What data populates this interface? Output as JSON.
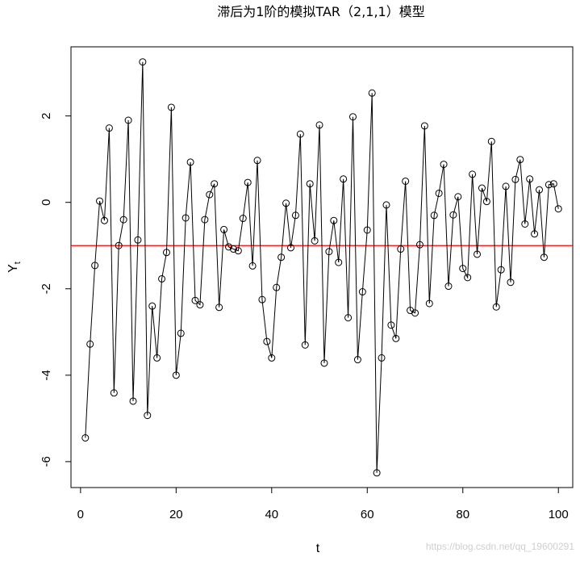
{
  "chart_data": {
    "type": "line",
    "title": "滞后为1阶的模拟TAR（2,1,1）模型",
    "xlabel": "t",
    "ylabel": "Y",
    "ylabel_subscript": "t",
    "xlim": [
      -2,
      103
    ],
    "ylim": [
      -6.6,
      3.6
    ],
    "x_ticks": [
      0,
      20,
      40,
      60,
      80,
      100
    ],
    "y_ticks": [
      -6,
      -4,
      -2,
      0,
      2
    ],
    "series": [
      {
        "line_color": "#000000",
        "marker": "open-circle",
        "x": [
          1,
          2,
          3,
          4,
          5,
          6,
          7,
          8,
          9,
          10,
          11,
          12,
          13,
          14,
          15,
          16,
          17,
          18,
          19,
          20,
          21,
          22,
          23,
          24,
          25,
          26,
          27,
          28,
          29,
          30,
          31,
          32,
          33,
          34,
          35,
          36,
          37,
          38,
          39,
          40,
          41,
          42,
          43,
          44,
          45,
          46,
          47,
          48,
          49,
          50,
          51,
          52,
          53,
          54,
          55,
          56,
          57,
          58,
          59,
          60,
          61,
          62,
          63,
          64,
          65,
          66,
          67,
          68,
          69,
          70,
          71,
          72,
          73,
          74,
          75,
          76,
          77,
          78,
          79,
          80,
          81,
          82,
          83,
          84,
          85,
          86,
          87,
          88,
          89,
          90,
          91,
          92,
          93,
          94,
          95,
          96,
          97,
          98,
          99,
          100
        ],
        "values": [
          -5.45,
          -3.28,
          -1.46,
          0.03,
          -0.42,
          1.72,
          -4.41,
          -1.0,
          -0.4,
          1.9,
          -4.6,
          -0.87,
          3.25,
          -4.93,
          -2.4,
          -3.6,
          -1.77,
          -1.16,
          2.2,
          -4.0,
          -3.03,
          -0.36,
          0.93,
          -2.27,
          -2.37,
          -0.4,
          0.18,
          0.43,
          -2.43,
          -0.63,
          -1.03,
          -1.08,
          -1.12,
          -0.37,
          0.46,
          -1.47,
          0.97,
          -2.25,
          -3.22,
          -3.6,
          -1.97,
          -1.27,
          -0.02,
          -1.05,
          -0.3,
          1.58,
          -3.3,
          0.43,
          -0.89,
          1.79,
          -3.72,
          -1.14,
          -0.42,
          -1.39,
          0.54,
          -2.67,
          1.98,
          -3.64,
          -2.07,
          -0.64,
          2.53,
          -6.26,
          -3.6,
          -0.06,
          -2.84,
          -3.15,
          -1.08,
          0.49,
          -2.5,
          -2.56,
          -0.98,
          1.77,
          -2.34,
          -0.3,
          0.21,
          0.88,
          -1.94,
          -0.29,
          0.13,
          -1.53,
          -1.74,
          0.65,
          -1.2,
          0.33,
          0.02,
          1.41,
          -2.42,
          -1.56,
          0.37,
          -1.85,
          0.53,
          0.99,
          -0.5,
          0.54,
          -0.73,
          0.29,
          -1.27,
          0.41,
          0.43,
          -0.15
        ]
      }
    ],
    "hline": {
      "y": -1.0,
      "color": "#ff0000"
    },
    "grid": false
  },
  "watermark": "https://blog.csdn.net/qq_19600291"
}
